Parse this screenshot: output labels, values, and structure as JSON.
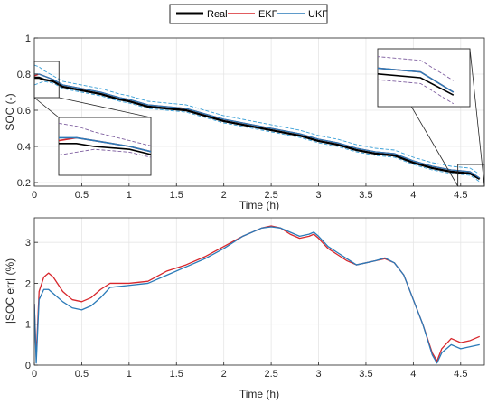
{
  "legend": {
    "entries": [
      {
        "name": "Real",
        "color": "#000000"
      },
      {
        "name": "EKF",
        "color": "#d7262b"
      },
      {
        "name": "UKF",
        "color": "#2a7ab8"
      }
    ]
  },
  "chart_data": [
    {
      "type": "line",
      "xlabel": "Time (h)",
      "ylabel": "SOC (-)",
      "xlim": [
        0,
        4.75
      ],
      "ylim": [
        0.18,
        1.0
      ],
      "xticks": [
        "0",
        "0.5",
        "1",
        "1.5",
        "2",
        "2.5",
        "3",
        "3.5",
        "4",
        "4.5"
      ],
      "xtick_values": [
        0,
        0.5,
        1,
        1.5,
        2,
        2.5,
        3,
        3.5,
        4,
        4.5
      ],
      "yticks": [
        "0.2",
        "0.4",
        "0.6",
        "0.8",
        "1"
      ],
      "ytick_values": [
        0.2,
        0.4,
        0.6,
        0.8,
        1.0
      ],
      "grid": true,
      "series": [
        {
          "name": "Real",
          "color": "#000000",
          "x": [
            0,
            0.05,
            0.1,
            0.2,
            0.3,
            0.5,
            0.7,
            0.9,
            1.0,
            1.2,
            1.4,
            1.6,
            1.8,
            2.0,
            2.2,
            2.4,
            2.6,
            2.8,
            3.0,
            3.2,
            3.4,
            3.6,
            3.8,
            4.0,
            4.2,
            4.4,
            4.6,
            4.7
          ],
          "y": [
            0.78,
            0.78,
            0.77,
            0.76,
            0.73,
            0.71,
            0.69,
            0.66,
            0.65,
            0.62,
            0.61,
            0.6,
            0.57,
            0.54,
            0.52,
            0.5,
            0.48,
            0.46,
            0.43,
            0.41,
            0.38,
            0.36,
            0.35,
            0.31,
            0.28,
            0.26,
            0.25,
            0.22
          ]
        },
        {
          "name": "EKF",
          "color": "#d7262b",
          "x": [
            0,
            0.05,
            0.1,
            0.2,
            0.3,
            0.5,
            0.7,
            0.9,
            1.0,
            1.2,
            1.4,
            1.6,
            1.8,
            2.0,
            2.2,
            2.4,
            2.6,
            2.8,
            3.0,
            3.2,
            3.4,
            3.6,
            3.8,
            4.0,
            4.2,
            4.4,
            4.6,
            4.7
          ],
          "y": [
            0.79,
            0.8,
            0.79,
            0.77,
            0.74,
            0.72,
            0.7,
            0.67,
            0.66,
            0.63,
            0.62,
            0.61,
            0.58,
            0.55,
            0.53,
            0.51,
            0.49,
            0.47,
            0.44,
            0.42,
            0.39,
            0.37,
            0.36,
            0.32,
            0.29,
            0.27,
            0.26,
            0.225
          ]
        },
        {
          "name": "UKF",
          "color": "#2a7ab8",
          "x": [
            0,
            0.05,
            0.1,
            0.2,
            0.3,
            0.5,
            0.7,
            0.9,
            1.0,
            1.2,
            1.4,
            1.6,
            1.8,
            2.0,
            2.2,
            2.4,
            2.6,
            2.8,
            3.0,
            3.2,
            3.4,
            3.6,
            3.8,
            4.0,
            4.2,
            4.4,
            4.6,
            4.7
          ],
          "y": [
            0.8,
            0.8,
            0.79,
            0.77,
            0.74,
            0.72,
            0.7,
            0.67,
            0.66,
            0.63,
            0.62,
            0.61,
            0.58,
            0.55,
            0.53,
            0.51,
            0.49,
            0.47,
            0.44,
            0.42,
            0.39,
            0.37,
            0.36,
            0.32,
            0.29,
            0.27,
            0.26,
            0.225
          ]
        }
      ],
      "bounds": [
        {
          "style": "dashed",
          "color": "#7f5fa0",
          "x": [
            0,
            0.05,
            0.1,
            0.2,
            0.3,
            0.5,
            0.7,
            0.9,
            1.0,
            1.2,
            1.4,
            1.6,
            1.8,
            2.0,
            2.2,
            2.4,
            2.6,
            2.8,
            3.0,
            3.2,
            3.4,
            3.6,
            3.8,
            4.0,
            4.2,
            4.4,
            4.6,
            4.7
          ],
          "y": [
            0.85,
            0.84,
            0.82,
            0.79,
            0.76,
            0.74,
            0.72,
            0.69,
            0.68,
            0.65,
            0.64,
            0.63,
            0.6,
            0.57,
            0.55,
            0.53,
            0.51,
            0.49,
            0.46,
            0.44,
            0.41,
            0.39,
            0.38,
            0.34,
            0.31,
            0.29,
            0.28,
            0.245
          ]
        },
        {
          "style": "dashed",
          "color": "#7f5fa0",
          "x": [
            0,
            0.05,
            0.1,
            0.2,
            0.3,
            0.5,
            0.7,
            0.9,
            1.0,
            1.2,
            1.4,
            1.6,
            1.8,
            2.0,
            2.2,
            2.4,
            2.6,
            2.8,
            3.0,
            3.2,
            3.4,
            3.6,
            3.8,
            4.0,
            4.2,
            4.4,
            4.6,
            4.7
          ],
          "y": [
            0.74,
            0.75,
            0.76,
            0.75,
            0.72,
            0.7,
            0.68,
            0.65,
            0.64,
            0.61,
            0.6,
            0.59,
            0.56,
            0.53,
            0.51,
            0.49,
            0.47,
            0.45,
            0.42,
            0.4,
            0.37,
            0.35,
            0.34,
            0.3,
            0.27,
            0.25,
            0.24,
            0.205
          ]
        }
      ],
      "annotations": [
        "zoom inset at start of discharge",
        "zoom inset at end of discharge"
      ]
    },
    {
      "type": "line",
      "xlabel": "Time (h)",
      "ylabel": "|SOC err| (%)",
      "xlim": [
        0,
        4.75
      ],
      "ylim": [
        0,
        3.6
      ],
      "xticks": [
        "0",
        "0.5",
        "1",
        "1.5",
        "2",
        "2.5",
        "3",
        "3.5",
        "4",
        "4.5"
      ],
      "xtick_values": [
        0,
        0.5,
        1,
        1.5,
        2,
        2.5,
        3,
        3.5,
        4,
        4.5
      ],
      "yticks": [
        "0",
        "1",
        "2",
        "3"
      ],
      "ytick_values": [
        0,
        1,
        2,
        3
      ],
      "grid": true,
      "series": [
        {
          "name": "EKF",
          "color": "#d7262b",
          "x": [
            0,
            0.02,
            0.05,
            0.1,
            0.15,
            0.2,
            0.3,
            0.4,
            0.5,
            0.6,
            0.7,
            0.8,
            1.0,
            1.2,
            1.4,
            1.6,
            1.8,
            2.0,
            2.2,
            2.4,
            2.5,
            2.6,
            2.7,
            2.8,
            2.9,
            2.95,
            3.0,
            3.1,
            3.2,
            3.3,
            3.4,
            3.5,
            3.6,
            3.7,
            3.8,
            3.9,
            4.0,
            4.1,
            4.2,
            4.25,
            4.3,
            4.4,
            4.5,
            4.6,
            4.7
          ],
          "y": [
            1.5,
            0.2,
            1.8,
            2.15,
            2.25,
            2.15,
            1.8,
            1.6,
            1.55,
            1.65,
            1.85,
            2.0,
            2.0,
            2.05,
            2.3,
            2.45,
            2.65,
            2.9,
            3.15,
            3.35,
            3.4,
            3.35,
            3.2,
            3.1,
            3.15,
            3.2,
            3.1,
            2.85,
            2.7,
            2.55,
            2.45,
            2.5,
            2.55,
            2.6,
            2.5,
            2.2,
            1.6,
            1.0,
            0.3,
            0.1,
            0.4,
            0.65,
            0.55,
            0.6,
            0.7
          ]
        },
        {
          "name": "UKF",
          "color": "#2a7ab8",
          "x": [
            0,
            0.02,
            0.05,
            0.1,
            0.15,
            0.2,
            0.3,
            0.4,
            0.5,
            0.6,
            0.7,
            0.8,
            1.0,
            1.2,
            1.4,
            1.6,
            1.8,
            2.0,
            2.2,
            2.4,
            2.5,
            2.6,
            2.7,
            2.8,
            2.9,
            2.95,
            3.0,
            3.1,
            3.2,
            3.3,
            3.4,
            3.5,
            3.6,
            3.7,
            3.8,
            3.9,
            4.0,
            4.1,
            4.2,
            4.25,
            4.3,
            4.4,
            4.5,
            4.6,
            4.7
          ],
          "y": [
            1.5,
            0.05,
            1.6,
            1.85,
            1.85,
            1.75,
            1.55,
            1.4,
            1.35,
            1.45,
            1.65,
            1.9,
            1.95,
            2.0,
            2.2,
            2.4,
            2.6,
            2.85,
            3.15,
            3.35,
            3.38,
            3.35,
            3.25,
            3.15,
            3.2,
            3.25,
            3.15,
            2.9,
            2.75,
            2.6,
            2.45,
            2.5,
            2.55,
            2.62,
            2.5,
            2.2,
            1.6,
            1.0,
            0.25,
            0.05,
            0.3,
            0.5,
            0.4,
            0.45,
            0.5
          ]
        }
      ]
    }
  ]
}
